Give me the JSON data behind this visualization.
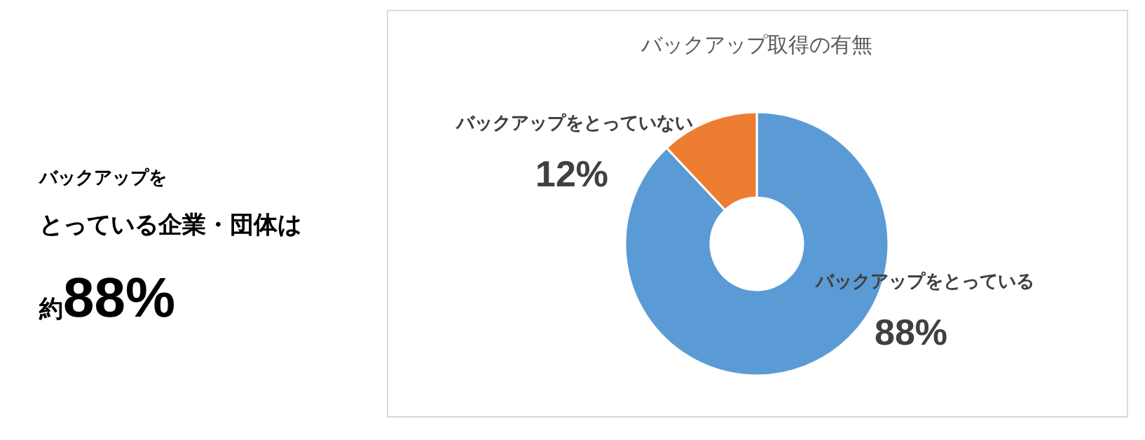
{
  "chart_data": {
    "type": "donut",
    "title": "バックアップ取得の有無",
    "categories": [
      "バックアップをとっている",
      "バックアップをとっていない"
    ],
    "values": [
      88,
      12
    ],
    "colors": [
      "#5b9bd5",
      "#ed7d31"
    ],
    "value_labels": [
      "88%",
      "12%"
    ],
    "legend": false,
    "annotations": [
      "バックアップを",
      "とっている企業・団体は",
      "約88%"
    ]
  }
}
